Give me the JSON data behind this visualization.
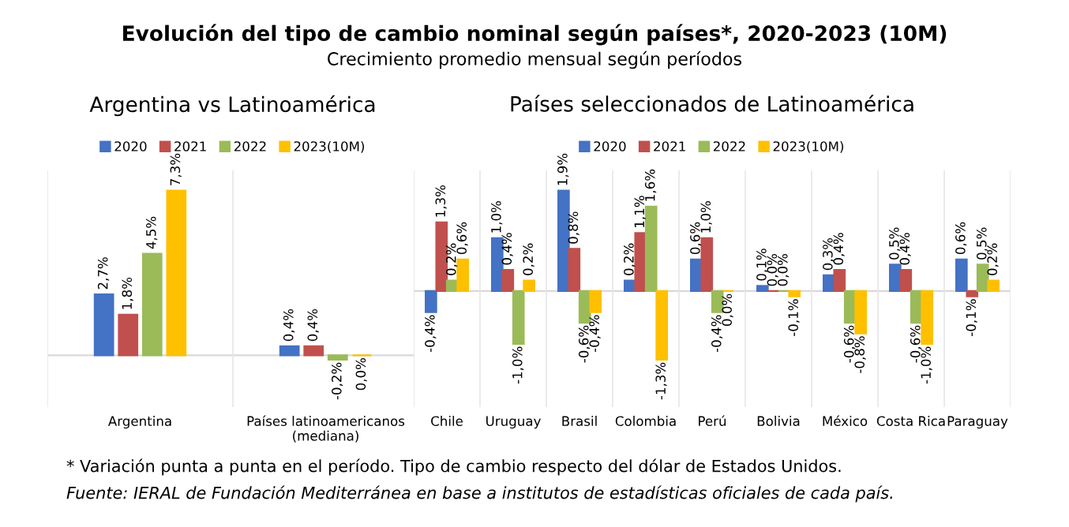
{
  "chart_data": [
    {
      "type": "other",
      "title": "Evolución del tipo de cambio nominal según países*, 2020-2023 (10M)",
      "subtitle": "Crecimiento promedio mensual según períodos",
      "annotations": [
        "* Variación punta a punta en el período. Tipo de cambio respecto del dólar de Estados Unidos.",
        "Fuente: IERAL de Fundación Mediterránea en base a institutos de estadísticas oficiales de cada país."
      ]
    },
    {
      "type": "bar",
      "title": "Argentina vs Latinoamérica",
      "categories": [
        "Argentina",
        "Países latinoamericanos\n(mediana)"
      ],
      "legend": "top",
      "data_labels": true,
      "ref_lines": [
        {
          "axis": "y",
          "value": 0,
          "color": "#d9d9d9"
        }
      ],
      "series": [
        {
          "name": "2020",
          "color": "#4472c4",
          "values": [
            2.7,
            0.4
          ],
          "value_labels": [
            "2,7%",
            "0,4%"
          ]
        },
        {
          "name": "2021",
          "color": "#c0504d",
          "values": [
            1.8,
            0.4
          ],
          "value_labels": [
            "1,8%",
            "0,4%"
          ]
        },
        {
          "name": "2022",
          "color": "#9bbb59",
          "values": [
            4.5,
            -0.2
          ],
          "value_labels": [
            "4,5%",
            "-0,2%"
          ]
        },
        {
          "name": "2023(10M)",
          "color": "#ffc000",
          "values": [
            7.3,
            0.0
          ],
          "value_labels": [
            "7,3%",
            "0,0%"
          ]
        }
      ]
    },
    {
      "type": "bar",
      "title": "Países seleccionados de Latinoamérica",
      "categories": [
        "Chile",
        "Uruguay",
        "Brasil",
        "Colombia",
        "Perú",
        "Bolivia",
        "México",
        "Costa Rica",
        "Paraguay"
      ],
      "legend": "top",
      "data_labels": true,
      "ref_lines": [
        {
          "axis": "y",
          "value": 0,
          "color": "#d9d9d9"
        }
      ],
      "series": [
        {
          "name": "2020",
          "color": "#4472c4",
          "values": [
            -0.4,
            1.0,
            1.9,
            0.2,
            0.6,
            0.1,
            0.3,
            0.5,
            0.6
          ],
          "value_labels": [
            "-0,4%",
            "1,0%",
            "1,9%",
            "0,2%",
            "0,6%",
            "0,1%",
            "0,3%",
            "0,5%",
            "0,6%"
          ]
        },
        {
          "name": "2021",
          "color": "#c0504d",
          "values": [
            1.3,
            0.4,
            0.8,
            1.1,
            1.0,
            0.0,
            0.4,
            0.4,
            -0.1
          ],
          "value_labels": [
            "1,3%",
            "0,4%",
            "0,8%",
            "1,1%",
            "1,0%",
            "0,0%",
            "0,4%",
            "0,4%",
            "-0,1%"
          ]
        },
        {
          "name": "2022",
          "color": "#9bbb59",
          "values": [
            0.2,
            -1.0,
            -0.6,
            1.6,
            -0.4,
            0.0,
            -0.6,
            -0.6,
            0.5
          ],
          "value_labels": [
            "0,2%",
            "-1,0%",
            "-0,6%",
            "1,6%",
            "-0,4%",
            "0,0%",
            "-0,6%",
            "-0,6%",
            "0,5%"
          ]
        },
        {
          "name": "2023(10M)",
          "color": "#ffc000",
          "values": [
            0.6,
            0.2,
            -0.4,
            -1.3,
            0.0,
            -0.1,
            -0.8,
            -1.0,
            0.2
          ],
          "value_labels": [
            "0,6%",
            "0,2%",
            "-0,4%",
            "-1,3%",
            "0,0%",
            "-0,1%",
            "-0,8%",
            "-1,0%",
            "0,2%"
          ]
        }
      ]
    }
  ]
}
